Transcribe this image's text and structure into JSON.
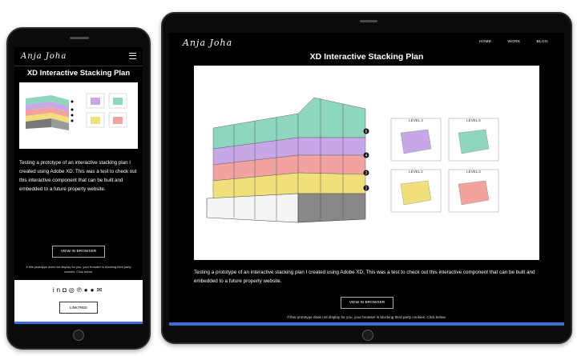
{
  "brand": {
    "signature": "Anja Joha"
  },
  "nav": {
    "items": [
      "HOME",
      "WORK",
      "BLOG"
    ]
  },
  "project": {
    "title": "XD Interactive Stacking Plan",
    "description": "Testing a prototype of an interactive stacking plan I created using Adobe XD. This was a test to check out this interactive component that can be built and embedded to a future property website.",
    "view_button": "VIEW IN BROWSER",
    "note": "If this prototype does not display for you, your browser is blocking third party cookies. Click below."
  },
  "plan": {
    "floor_markers": [
      "6",
      "4",
      "3",
      "2"
    ],
    "levels": [
      {
        "label": "LEVEL 4",
        "color": "#c7a7e6"
      },
      {
        "label": "LEVEL 6",
        "color": "#8fd6c0"
      },
      {
        "label": "LEVEL 2",
        "color": "#f1e07a"
      },
      {
        "label": "LEVEL 3",
        "color": "#f2a3a0"
      }
    ],
    "floor_colors": [
      "#8fd6c0",
      "#c7a7e6",
      "#f2a3a0",
      "#f1e07a"
    ]
  },
  "footer": {
    "social_icons": [
      "linkedin-icon",
      "instagram-icon",
      "dribbble-icon",
      "pinterest-icon",
      "flickr-icon",
      "mail-icon"
    ],
    "linktree_button": "LINKTREE"
  }
}
